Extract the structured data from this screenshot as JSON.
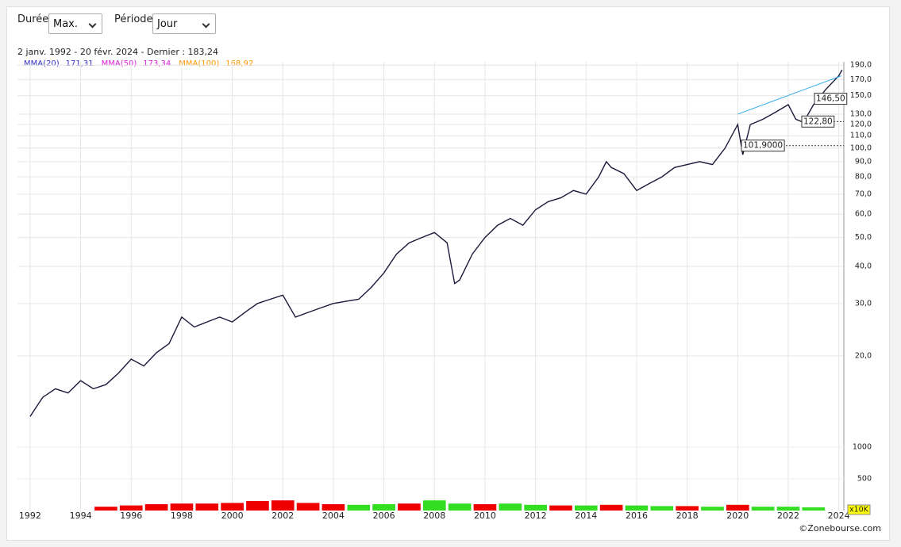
{
  "controls": {
    "duration_label": "Durée",
    "duration_value": "Max.",
    "period_label": "Période",
    "period_value": "Jour"
  },
  "header": {
    "range": "2 janv. 1992 - 20 févr. 2024 - Dernier : 183,24",
    "averages": [
      {
        "name": "MMA(20)",
        "value": "171,31",
        "color": "#3333cc"
      },
      {
        "name": "MMA(50)",
        "value": "173,34",
        "color": "#dd22dd"
      },
      {
        "name": "MMA(100)",
        "value": "168,92",
        "color": "#ff9900"
      }
    ]
  },
  "footer": "©Zonebourse.com",
  "chart_data": [
    {
      "type": "line",
      "log_scale": true,
      "grid": true,
      "color": "#1a1a3a",
      "x": [
        1992.0,
        1992.5,
        1993.0,
        1993.5,
        1994.0,
        1994.5,
        1995.0,
        1995.5,
        1996.0,
        1996.5,
        1997.0,
        1997.5,
        1998.0,
        1998.5,
        1999.0,
        1999.5,
        2000.0,
        2000.5,
        2001.0,
        2001.5,
        2002.0,
        2002.5,
        2003.0,
        2003.5,
        2004.0,
        2004.5,
        2005.0,
        2005.5,
        2006.0,
        2006.5,
        2007.0,
        2007.5,
        2008.0,
        2008.5,
        2008.8,
        2009.0,
        2009.5,
        2010.0,
        2010.5,
        2011.0,
        2011.5,
        2012.0,
        2012.5,
        2013.0,
        2013.5,
        2014.0,
        2014.5,
        2014.8,
        2015.0,
        2015.5,
        2016.0,
        2016.5,
        2017.0,
        2017.5,
        2018.0,
        2018.5,
        2019.0,
        2019.5,
        2020.0,
        2020.2,
        2020.5,
        2021.0,
        2021.5,
        2022.0,
        2022.3,
        2022.6,
        2023.0,
        2023.5,
        2024.0,
        2024.13
      ],
      "values": [
        12.5,
        14.5,
        15.5,
        15,
        16.5,
        15.5,
        16,
        17.5,
        19.5,
        18.5,
        20.5,
        22,
        27,
        25,
        26,
        27,
        26,
        28,
        30,
        31,
        32,
        27,
        28,
        29,
        30,
        30.5,
        31,
        34,
        38,
        44,
        48,
        50,
        52,
        48,
        35,
        36,
        44,
        50,
        55,
        58,
        55,
        62,
        66,
        68,
        72,
        70,
        80,
        90,
        86,
        82,
        72,
        76,
        80,
        86,
        88,
        90,
        88,
        100,
        120,
        95,
        120,
        125,
        132,
        140,
        125,
        122,
        140,
        158,
        175,
        183.24
      ],
      "xlim": [
        1991.5,
        2024.2
      ],
      "xticks": [
        1992,
        1994,
        1996,
        1998,
        2000,
        2002,
        2004,
        2006,
        2008,
        2010,
        2012,
        2014,
        2016,
        2018,
        2020,
        2022,
        2024
      ],
      "ylim": [
        11.5,
        195
      ],
      "yticks": [
        {
          "value": 190,
          "label": "190,0"
        },
        {
          "value": 170,
          "label": "170,0"
        },
        {
          "value": 150,
          "label": "150,0"
        },
        {
          "value": 130,
          "label": "130,0"
        },
        {
          "value": 120,
          "label": "120,0"
        },
        {
          "value": 110,
          "label": "110,0"
        },
        {
          "value": 100,
          "label": "100,0"
        },
        {
          "value": 90,
          "label": "90,0"
        },
        {
          "value": 80,
          "label": "80,0"
        },
        {
          "value": 70,
          "label": "70,0"
        },
        {
          "value": 60,
          "label": "60,0"
        },
        {
          "value": 50,
          "label": "50,0"
        },
        {
          "value": 40,
          "label": "40,0"
        },
        {
          "value": 30,
          "label": "30,0"
        },
        {
          "value": 20,
          "label": "20,0"
        }
      ],
      "annotations": [
        {
          "value": 146.5,
          "label": "146,50"
        },
        {
          "value": 122.8,
          "label": "122,80"
        },
        {
          "value": 101.9,
          "label": "101,9000"
        }
      ],
      "trendline": {
        "x": [
          2020.0,
          2024.1
        ],
        "y": [
          130,
          175
        ],
        "color": "#33aaee"
      }
    },
    {
      "type": "bar",
      "unit": "x10K",
      "x": [
        1995,
        1996,
        1997,
        1998,
        1999,
        2000,
        2001,
        2002,
        2003,
        2004,
        2005,
        2006,
        2007,
        2008,
        2009,
        2010,
        2011,
        2012,
        2013,
        2014,
        2015,
        2016,
        2017,
        2018,
        2019,
        2020,
        2021,
        2022,
        2023
      ],
      "values": [
        60,
        80,
        100,
        110,
        110,
        120,
        150,
        160,
        120,
        100,
        90,
        100,
        110,
        160,
        110,
        100,
        110,
        90,
        80,
        80,
        90,
        80,
        70,
        70,
        60,
        90,
        60,
        60,
        50
      ],
      "colors": [
        "#ee0000",
        "#ee0000",
        "#ee0000",
        "#ee0000",
        "#ee0000",
        "#ee0000",
        "#ee0000",
        "#ee0000",
        "#ee0000",
        "#ee0000",
        "#33dd22",
        "#33dd22",
        "#ee0000",
        "#33dd22",
        "#33dd22",
        "#ee0000",
        "#33dd22",
        "#33dd22",
        "#ee0000",
        "#33dd22",
        "#ee0000",
        "#33dd22",
        "#33dd22",
        "#ee0000",
        "#33dd22",
        "#ee0000",
        "#33dd22",
        "#33dd22",
        "#33dd22"
      ],
      "xlim": [
        1991.5,
        2024.2
      ],
      "ylim": [
        0,
        1200
      ],
      "yticks": [
        1000,
        500
      ]
    }
  ]
}
